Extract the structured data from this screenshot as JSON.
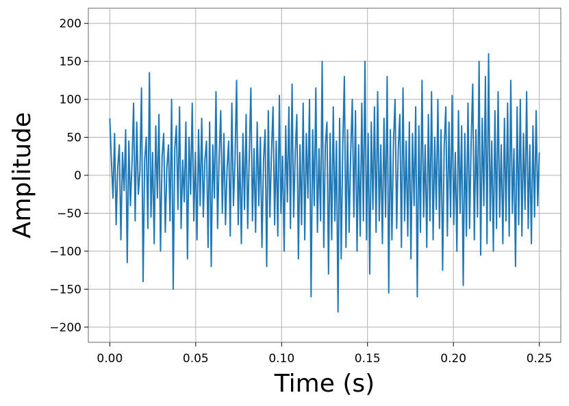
{
  "chart_data": {
    "type": "line",
    "title": "",
    "xlabel": "Time (s)",
    "ylabel": "Amplitude",
    "xlim": [
      -0.0125,
      0.2625
    ],
    "ylim": [
      -220,
      220
    ],
    "xticks": [
      0.0,
      0.05,
      0.1,
      0.15,
      0.2,
      0.25
    ],
    "xtick_labels": [
      "0.00",
      "0.05",
      "0.10",
      "0.15",
      "0.20",
      "0.25"
    ],
    "yticks": [
      -200,
      -150,
      -100,
      -50,
      0,
      50,
      100,
      150,
      200
    ],
    "ytick_labels": [
      "−200",
      "−150",
      "−100",
      "−50",
      "0",
      "50",
      "100",
      "150",
      "200"
    ],
    "grid": true,
    "series_color": "#1f77b4",
    "series": [
      {
        "x_start": 0.0,
        "x_end": 0.25,
        "values": [
          75,
          20,
          -30,
          55,
          -65,
          10,
          40,
          -85,
          30,
          -20,
          60,
          -115,
          45,
          -40,
          15,
          95,
          -60,
          70,
          -25,
          5,
          115,
          -140,
          20,
          50,
          -70,
          135,
          -55,
          30,
          -90,
          65,
          -30,
          80,
          -100,
          25,
          55,
          -75,
          10,
          40,
          -60,
          100,
          -150,
          35,
          65,
          -45,
          90,
          -70,
          20,
          -35,
          70,
          -110,
          50,
          -25,
          95,
          -60,
          30,
          -85,
          60,
          -40,
          75,
          -55,
          20,
          45,
          -95,
          70,
          -120,
          40,
          -30,
          110,
          -70,
          25,
          85,
          -50,
          55,
          -65,
          10,
          45,
          -80,
          95,
          -40,
          20,
          125,
          -65,
          30,
          -90,
          55,
          -45,
          80,
          -70,
          25,
          115,
          -60,
          35,
          -75,
          70,
          -40,
          50,
          -95,
          20,
          60,
          -120,
          85,
          -55,
          30,
          90,
          -65,
          45,
          -80,
          105,
          -50,
          25,
          -100,
          65,
          -35,
          90,
          -70,
          120,
          -55,
          30,
          80,
          -110,
          40,
          -65,
          95,
          -85,
          55,
          -30,
          100,
          -160,
          60,
          -40,
          115,
          -75,
          35,
          -60,
          150,
          -95,
          40,
          70,
          -130,
          55,
          -85,
          90,
          -60,
          45,
          -180,
          75,
          -110,
          40,
          130,
          -95,
          60,
          -75,
          30,
          100,
          -55,
          85,
          -100,
          40,
          -80,
          95,
          -60,
          150,
          -85,
          55,
          -130,
          70,
          -45,
          90,
          -75,
          110,
          -60,
          40,
          -90,
          75,
          -55,
          130,
          -155,
          60,
          -85,
          45,
          100,
          -70,
          35,
          80,
          -95,
          115,
          -60,
          45,
          -80,
          70,
          -110,
          55,
          -40,
          90,
          -160,
          65,
          -75,
          125,
          -55,
          40,
          -95,
          80,
          -60,
          110,
          -85,
          50,
          -45,
          100,
          -70,
          60,
          -125,
          40,
          90,
          -80,
          70,
          -55,
          105,
          -65,
          30,
          -100,
          85,
          -50,
          65,
          -145,
          55,
          -80,
          95,
          -70,
          45,
          120,
          -85,
          60,
          -55,
          150,
          -105,
          75,
          -40,
          130,
          -90,
          160,
          -60,
          45,
          -100,
          85,
          -70,
          110,
          -55,
          40,
          -90,
          75,
          -60,
          95,
          -80,
          125,
          -50,
          35,
          -120,
          90,
          -65,
          100,
          -80,
          55,
          -45,
          110,
          -70,
          40,
          -90,
          65,
          -55,
          85,
          -40,
          30
        ]
      }
    ]
  }
}
